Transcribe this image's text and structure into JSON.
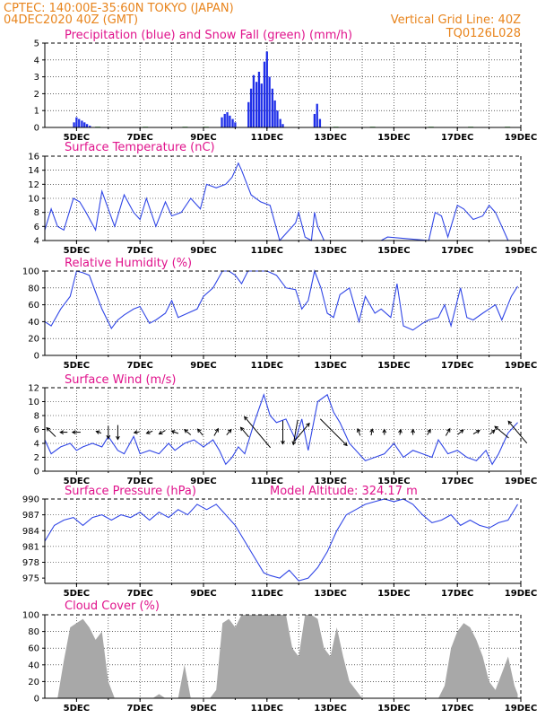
{
  "header": {
    "line1_left": "CPTEC:   140:00E-35:60N   TOKYO (JAPAN)",
    "line2_left": "04DEC2020 40Z (GMT)",
    "line2_right": "Vertical Grid Line: 40Z",
    "line3_right": "TQ0126L028"
  },
  "colors": {
    "header": "#e8841c",
    "panel_title": "#e0138c",
    "precip": "#1f2fe8",
    "snow": "#1fa01f",
    "line": "#3046e6",
    "cloud": "#a8a8a8",
    "arrow": "#000000"
  },
  "chart_data": [
    {
      "id": "precip",
      "type": "bar",
      "title": "Precipitation (blue) and Snow Fall (green) (mm/h)",
      "xlabels": [
        "5DEC",
        "7DEC",
        "9DEC",
        "11DEC",
        "13DEC",
        "15DEC",
        "17DEC",
        "19DEC"
      ],
      "ylim": [
        0,
        5
      ],
      "yticks": [
        0,
        1,
        2,
        3,
        4,
        5
      ],
      "grid": true,
      "series": [
        {
          "kind": "precip",
          "x": [
            4.92,
            5.0,
            5.08,
            5.17,
            5.25,
            5.33,
            5.42
          ],
          "values": [
            0.3,
            0.6,
            0.5,
            0.4,
            0.3,
            0.2,
            0.1
          ]
        },
        {
          "kind": "precip",
          "x": [
            9.58,
            9.67,
            9.75,
            9.83,
            9.92,
            10.0
          ],
          "values": [
            0.6,
            0.8,
            0.9,
            0.7,
            0.5,
            0.3
          ]
        },
        {
          "kind": "precip",
          "x": [
            10.42,
            10.5,
            10.58,
            10.67,
            10.75,
            10.83,
            10.92,
            11.0,
            11.08,
            11.17,
            11.25,
            11.33,
            11.42,
            11.5
          ],
          "values": [
            1.5,
            2.3,
            3.1,
            2.7,
            3.3,
            2.6,
            3.9,
            4.5,
            3.0,
            2.3,
            1.6,
            1.0,
            0.5,
            0.2
          ]
        },
        {
          "kind": "precip",
          "x": [
            12.5,
            12.58,
            12.67
          ],
          "values": [
            0.8,
            1.4,
            0.5
          ]
        },
        {
          "kind": "snow",
          "x": [
            5.67,
            7.17,
            8.42,
            9.08,
            13.17,
            14.33,
            16.17,
            17.42,
            18.58
          ],
          "values": [
            0.04,
            0.04,
            0.04,
            0.04,
            0.04,
            0.04,
            0.04,
            0.04,
            0.04
          ]
        }
      ]
    },
    {
      "id": "temp",
      "type": "line",
      "title": "Surface Temperature (nC)",
      "xlabels": [
        "5DEC",
        "7DEC",
        "9DEC",
        "11DEC",
        "13DEC",
        "15DEC",
        "17DEC",
        "19DEC"
      ],
      "ylim": [
        4,
        16
      ],
      "yticks": [
        4,
        6,
        8,
        10,
        12,
        14,
        16
      ],
      "grid": true,
      "x": [
        4.0,
        4.2,
        4.4,
        4.6,
        4.9,
        5.1,
        5.3,
        5.6,
        5.8,
        6.0,
        6.2,
        6.5,
        6.8,
        7.0,
        7.2,
        7.5,
        7.8,
        8.0,
        8.3,
        8.6,
        8.9,
        9.1,
        9.4,
        9.7,
        9.9,
        10.1,
        10.2,
        10.5,
        10.8,
        11.1,
        11.4,
        11.7,
        11.9,
        12.0,
        12.2,
        12.4,
        12.5,
        12.6,
        12.8,
        14.6,
        14.8,
        16.1,
        16.3,
        16.5,
        16.7,
        17.0,
        17.2,
        17.5,
        17.8,
        18.0,
        18.2,
        18.4,
        18.6
      ],
      "values": [
        5.5,
        8.5,
        6.0,
        5.5,
        10.0,
        9.5,
        8.0,
        5.5,
        11.0,
        8.5,
        6.0,
        10.5,
        8.0,
        7.0,
        10.0,
        6.0,
        9.5,
        7.5,
        8.0,
        10.0,
        8.5,
        12.0,
        11.5,
        12.0,
        13.0,
        15.0,
        14.0,
        10.5,
        9.5,
        9.0,
        4.0,
        5.5,
        6.5,
        8.0,
        4.5,
        4.0,
        8.0,
        6.0,
        4.0,
        4.0,
        4.5,
        4.0,
        8.0,
        7.5,
        4.5,
        9.0,
        8.5,
        7.0,
        7.5,
        9.0,
        8.0,
        6.0,
        4.0
      ]
    },
    {
      "id": "rh",
      "type": "line",
      "title": "Relative Humidity (%)",
      "xlabels": [
        "5DEC",
        "7DEC",
        "9DEC",
        "11DEC",
        "13DEC",
        "15DEC",
        "17DEC",
        "19DEC"
      ],
      "ylim": [
        0,
        100
      ],
      "yticks": [
        0,
        20,
        40,
        60,
        80,
        100
      ],
      "grid": true,
      "x": [
        4.0,
        4.2,
        4.5,
        4.8,
        5.0,
        5.2,
        5.4,
        5.6,
        5.8,
        6.1,
        6.3,
        6.5,
        6.8,
        7.0,
        7.3,
        7.5,
        7.8,
        8.0,
        8.2,
        8.5,
        8.8,
        9.0,
        9.3,
        9.6,
        9.8,
        10.0,
        10.2,
        10.4,
        10.6,
        10.8,
        11.0,
        11.3,
        11.6,
        11.9,
        12.1,
        12.3,
        12.5,
        12.7,
        12.9,
        13.1,
        13.3,
        13.6,
        13.9,
        14.1,
        14.4,
        14.6,
        14.9,
        15.1,
        15.3,
        15.6,
        15.9,
        16.1,
        16.4,
        16.6,
        16.8,
        17.1,
        17.3,
        17.5,
        17.8,
        18.0,
        18.2,
        18.4,
        18.7,
        18.9
      ],
      "values": [
        40,
        35,
        55,
        70,
        100,
        98,
        95,
        75,
        55,
        32,
        42,
        48,
        55,
        58,
        38,
        42,
        50,
        65,
        45,
        50,
        55,
        70,
        80,
        100,
        100,
        95,
        85,
        100,
        100,
        100,
        100,
        95,
        80,
        78,
        55,
        65,
        100,
        80,
        50,
        45,
        72,
        80,
        40,
        70,
        50,
        55,
        45,
        85,
        35,
        30,
        38,
        42,
        45,
        60,
        35,
        80,
        45,
        42,
        50,
        55,
        60,
        42,
        70,
        82
      ]
    },
    {
      "id": "wind",
      "type": "line",
      "title": "Surface Wind (m/s)",
      "xlabels": [
        "5DEC",
        "7DEC",
        "9DEC",
        "11DEC",
        "13DEC",
        "15DEC",
        "17DEC",
        "19DEC"
      ],
      "ylim": [
        0,
        12
      ],
      "yticks": [
        0,
        2,
        4,
        6,
        8,
        10,
        12
      ],
      "grid": true,
      "x": [
        4.0,
        4.2,
        4.5,
        4.8,
        5.0,
        5.2,
        5.5,
        5.8,
        6.0,
        6.3,
        6.5,
        6.8,
        7.0,
        7.3,
        7.6,
        7.9,
        8.1,
        8.4,
        8.7,
        9.0,
        9.3,
        9.5,
        9.7,
        9.9,
        10.1,
        10.3,
        10.6,
        10.9,
        11.1,
        11.3,
        11.6,
        11.9,
        12.1,
        12.3,
        12.6,
        12.9,
        13.1,
        13.3,
        13.6,
        13.9,
        14.1,
        14.4,
        14.7,
        15.0,
        15.3,
        15.6,
        15.9,
        16.2,
        16.4,
        16.7,
        17.0,
        17.3,
        17.6,
        17.9,
        18.1,
        18.3,
        18.6,
        18.9
      ],
      "values": [
        4.5,
        2.5,
        3.5,
        4.0,
        3.0,
        3.5,
        4.0,
        3.5,
        5.0,
        3.0,
        2.5,
        5.0,
        2.5,
        3.0,
        2.5,
        4.0,
        3.0,
        4.0,
        4.5,
        3.5,
        4.5,
        3.0,
        1.0,
        2.0,
        3.5,
        2.5,
        7.0,
        11.0,
        8.0,
        7.0,
        7.5,
        4.5,
        7.5,
        3.0,
        10.0,
        11.0,
        8.5,
        7.0,
        4.0,
        2.5,
        1.5,
        2.0,
        2.5,
        4.0,
        2.0,
        3.0,
        2.5,
        2.0,
        4.5,
        2.5,
        3.0,
        2.0,
        1.5,
        3.0,
        1.0,
        2.5,
        5.5,
        7.0
      ]
    },
    {
      "id": "pressure",
      "type": "line",
      "title": "Surface Pressure (hPa)",
      "title2": "Model Altitude: 324.17 m",
      "xlabels": [
        "5DEC",
        "7DEC",
        "9DEC",
        "11DEC",
        "13DEC",
        "15DEC",
        "17DEC",
        "19DEC"
      ],
      "ylim": [
        974,
        990
      ],
      "yticks": [
        975,
        978,
        981,
        984,
        987,
        990
      ],
      "grid": true,
      "x": [
        4.0,
        4.3,
        4.6,
        4.9,
        5.2,
        5.5,
        5.8,
        6.1,
        6.4,
        6.7,
        7.0,
        7.3,
        7.6,
        7.9,
        8.2,
        8.5,
        8.8,
        9.1,
        9.4,
        9.7,
        10.0,
        10.3,
        10.6,
        10.9,
        11.1,
        11.4,
        11.7,
        12.0,
        12.3,
        12.6,
        12.9,
        13.2,
        13.5,
        13.8,
        14.1,
        14.4,
        14.7,
        15.0,
        15.3,
        15.6,
        15.9,
        16.2,
        16.5,
        16.8,
        17.1,
        17.4,
        17.7,
        18.0,
        18.3,
        18.6,
        18.9
      ],
      "values": [
        982,
        985,
        986,
        986.5,
        985,
        986.5,
        987,
        986,
        987,
        986.5,
        987.5,
        986,
        987.5,
        986.5,
        988,
        987,
        989,
        988,
        989,
        987,
        985,
        982,
        979,
        976,
        975.5,
        975,
        976.5,
        974.5,
        975,
        977,
        980,
        984,
        987,
        988,
        989,
        989.5,
        990,
        989.5,
        990,
        989,
        987,
        985.5,
        986,
        987,
        985,
        986,
        985,
        984.5,
        985.5,
        986,
        989
      ]
    },
    {
      "id": "cloud",
      "type": "area",
      "title": "Cloud Cover (%)",
      "xlabels": [
        "5DEC",
        "7DEC",
        "9DEC",
        "11DEC",
        "13DEC",
        "15DEC",
        "17DEC",
        "19DEC"
      ],
      "ylim": [
        0,
        100
      ],
      "yticks": [
        0,
        20,
        40,
        60,
        80,
        100
      ],
      "grid": true,
      "x": [
        4.0,
        4.4,
        4.6,
        4.8,
        5.0,
        5.2,
        5.4,
        5.6,
        5.8,
        6.0,
        6.2,
        6.5,
        7.0,
        7.4,
        7.6,
        7.8,
        8.0,
        8.2,
        8.4,
        8.6,
        8.8,
        9.0,
        9.2,
        9.4,
        9.6,
        9.8,
        10.0,
        10.2,
        10.4,
        10.6,
        10.8,
        11.0,
        11.2,
        11.4,
        11.6,
        11.8,
        12.0,
        12.2,
        12.4,
        12.6,
        12.8,
        13.0,
        13.2,
        13.4,
        13.6,
        13.8,
        14.0,
        14.2,
        15.0,
        15.4,
        15.8,
        16.0,
        16.4,
        16.6,
        16.8,
        17.0,
        17.2,
        17.4,
        17.6,
        17.8,
        18.0,
        18.2,
        18.4,
        18.6,
        18.8,
        18.9
      ],
      "values": [
        0,
        0,
        45,
        85,
        90,
        95,
        85,
        70,
        80,
        20,
        0,
        0,
        0,
        0,
        5,
        0,
        0,
        0,
        40,
        0,
        0,
        0,
        0,
        10,
        90,
        95,
        85,
        100,
        100,
        100,
        100,
        100,
        100,
        100,
        100,
        60,
        50,
        100,
        100,
        95,
        60,
        50,
        85,
        50,
        20,
        10,
        0,
        0,
        0,
        0,
        0,
        0,
        0,
        15,
        60,
        80,
        90,
        85,
        70,
        50,
        20,
        10,
        30,
        50,
        15,
        5
      ]
    }
  ],
  "wind_arrows": [
    {
      "x": 4.2,
      "angle": 225,
      "len": 14
    },
    {
      "x": 4.6,
      "angle": 180,
      "len": 8
    },
    {
      "x": 5.0,
      "angle": 180,
      "len": 9
    },
    {
      "x": 5.7,
      "angle": 200,
      "len": 6
    },
    {
      "x": 6.0,
      "angle": 90,
      "len": 14
    },
    {
      "x": 6.3,
      "angle": 90,
      "len": 16
    },
    {
      "x": 6.9,
      "angle": 170,
      "len": 6
    },
    {
      "x": 7.3,
      "angle": 160,
      "len": 7
    },
    {
      "x": 7.7,
      "angle": 150,
      "len": 8
    },
    {
      "x": 8.1,
      "angle": 200,
      "len": 8
    },
    {
      "x": 8.5,
      "angle": 220,
      "len": 9
    },
    {
      "x": 8.9,
      "angle": 230,
      "len": 9
    },
    {
      "x": 9.4,
      "angle": 300,
      "len": 9
    },
    {
      "x": 9.8,
      "angle": 310,
      "len": 8
    },
    {
      "x": 10.3,
      "angle": 230,
      "len": 14
    },
    {
      "x": 10.7,
      "angle": 230,
      "len": 45
    },
    {
      "x": 11.5,
      "angle": 90,
      "len": 26
    },
    {
      "x": 11.9,
      "angle": 100,
      "len": 28
    },
    {
      "x": 12.1,
      "angle": 310,
      "len": 26
    },
    {
      "x": 13.1,
      "angle": 45,
      "len": 42
    },
    {
      "x": 13.9,
      "angle": 250,
      "len": 8
    },
    {
      "x": 14.3,
      "angle": 280,
      "len": 7
    },
    {
      "x": 14.7,
      "angle": 270,
      "len": 6
    },
    {
      "x": 15.2,
      "angle": 280,
      "len": 6
    },
    {
      "x": 15.6,
      "angle": 270,
      "len": 6
    },
    {
      "x": 16.1,
      "angle": 300,
      "len": 7
    },
    {
      "x": 16.7,
      "angle": 300,
      "len": 9
    },
    {
      "x": 17.1,
      "angle": 320,
      "len": 8
    },
    {
      "x": 17.6,
      "angle": 330,
      "len": 8
    },
    {
      "x": 18.1,
      "angle": 320,
      "len": 7
    },
    {
      "x": 18.4,
      "angle": 220,
      "len": 20
    },
    {
      "x": 18.9,
      "angle": 230,
      "len": 32
    }
  ]
}
